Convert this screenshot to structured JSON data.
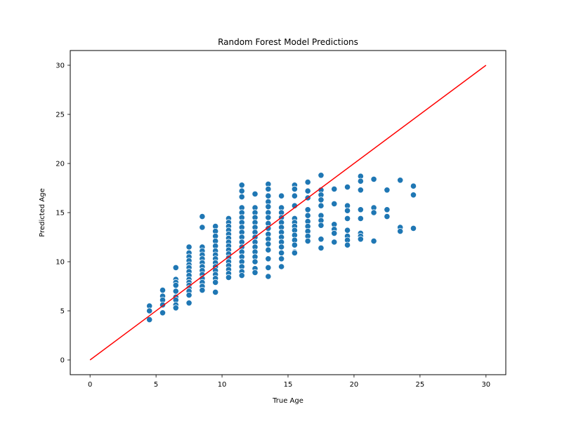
{
  "chart_data": {
    "type": "scatter",
    "title": "Random Forest Model Predictions",
    "xlabel": "True Age",
    "ylabel": "Predicted Age",
    "xlim": [
      -1.5,
      31.5
    ],
    "ylim": [
      -1.5,
      31.5
    ],
    "xticks": [
      0,
      5,
      10,
      15,
      20,
      25,
      30
    ],
    "yticks": [
      0,
      5,
      10,
      15,
      20,
      25,
      30
    ],
    "grid": false,
    "legend": "none",
    "colors": {
      "points": "#1f77b4",
      "reference_line": "#ff0000"
    },
    "reference_line": {
      "name": "",
      "x": [
        0,
        30
      ],
      "y": [
        0,
        30
      ]
    },
    "series": [
      {
        "name": "",
        "points": [
          [
            4.5,
            5.5
          ],
          [
            4.5,
            5.0
          ],
          [
            4.5,
            4.1
          ],
          [
            5.5,
            7.1
          ],
          [
            5.5,
            6.5
          ],
          [
            5.5,
            6.1
          ],
          [
            5.5,
            5.6
          ],
          [
            5.5,
            4.8
          ],
          [
            6.5,
            9.4
          ],
          [
            6.5,
            8.2
          ],
          [
            6.5,
            7.9
          ],
          [
            6.5,
            7.6
          ],
          [
            6.5,
            7.0
          ],
          [
            6.5,
            6.4
          ],
          [
            6.5,
            6.1
          ],
          [
            6.5,
            5.6
          ],
          [
            6.5,
            5.3
          ],
          [
            7.5,
            11.5
          ],
          [
            7.5,
            10.9
          ],
          [
            7.5,
            10.5
          ],
          [
            7.5,
            10.1
          ],
          [
            7.5,
            9.7
          ],
          [
            7.5,
            9.4
          ],
          [
            7.5,
            9.0
          ],
          [
            7.5,
            8.6
          ],
          [
            7.5,
            8.2
          ],
          [
            7.5,
            7.9
          ],
          [
            7.5,
            7.6
          ],
          [
            7.5,
            7.3
          ],
          [
            7.5,
            7.0
          ],
          [
            7.5,
            6.6
          ],
          [
            7.5,
            5.8
          ],
          [
            8.5,
            14.6
          ],
          [
            8.5,
            13.5
          ],
          [
            8.5,
            11.5
          ],
          [
            8.5,
            11.1
          ],
          [
            8.5,
            10.7
          ],
          [
            8.5,
            10.3
          ],
          [
            8.5,
            9.9
          ],
          [
            8.5,
            9.5
          ],
          [
            8.5,
            9.1
          ],
          [
            8.5,
            8.7
          ],
          [
            8.5,
            8.3
          ],
          [
            8.5,
            7.9
          ],
          [
            8.5,
            7.5
          ],
          [
            8.5,
            7.1
          ],
          [
            9.5,
            13.6
          ],
          [
            9.5,
            13.1
          ],
          [
            9.5,
            12.6
          ],
          [
            9.5,
            12.1
          ],
          [
            9.5,
            11.6
          ],
          [
            9.5,
            11.1
          ],
          [
            9.5,
            10.7
          ],
          [
            9.5,
            10.3
          ],
          [
            9.5,
            9.9
          ],
          [
            9.5,
            9.5
          ],
          [
            9.5,
            9.1
          ],
          [
            9.5,
            8.7
          ],
          [
            9.5,
            8.3
          ],
          [
            9.5,
            7.9
          ],
          [
            9.5,
            6.9
          ],
          [
            10.5,
            14.4
          ],
          [
            10.5,
            14.0
          ],
          [
            10.5,
            13.6
          ],
          [
            10.5,
            13.2
          ],
          [
            10.5,
            12.8
          ],
          [
            10.5,
            12.4
          ],
          [
            10.5,
            12.0
          ],
          [
            10.5,
            11.6
          ],
          [
            10.5,
            11.2
          ],
          [
            10.5,
            10.8
          ],
          [
            10.5,
            10.4
          ],
          [
            10.5,
            10.0
          ],
          [
            10.5,
            9.6
          ],
          [
            10.5,
            9.2
          ],
          [
            10.5,
            8.8
          ],
          [
            10.5,
            8.4
          ],
          [
            11.5,
            17.8
          ],
          [
            11.5,
            17.2
          ],
          [
            11.5,
            16.6
          ],
          [
            11.5,
            15.5
          ],
          [
            11.5,
            15.0
          ],
          [
            11.5,
            14.5
          ],
          [
            11.5,
            14.0
          ],
          [
            11.5,
            13.5
          ],
          [
            11.5,
            13.0
          ],
          [
            11.5,
            12.5
          ],
          [
            11.5,
            12.0
          ],
          [
            11.5,
            11.5
          ],
          [
            11.5,
            11.0
          ],
          [
            11.5,
            10.5
          ],
          [
            11.5,
            10.0
          ],
          [
            11.5,
            9.5
          ],
          [
            11.5,
            9.0
          ],
          [
            11.5,
            8.6
          ],
          [
            12.5,
            16.9
          ],
          [
            12.5,
            15.5
          ],
          [
            12.5,
            15.0
          ],
          [
            12.5,
            14.5
          ],
          [
            12.5,
            14.0
          ],
          [
            12.5,
            13.5
          ],
          [
            12.5,
            13.0
          ],
          [
            12.5,
            12.5
          ],
          [
            12.5,
            12.0
          ],
          [
            12.5,
            11.5
          ],
          [
            12.5,
            11.0
          ],
          [
            12.5,
            10.5
          ],
          [
            12.5,
            10.0
          ],
          [
            12.5,
            9.3
          ],
          [
            12.5,
            8.9
          ],
          [
            13.5,
            17.9
          ],
          [
            13.5,
            17.4
          ],
          [
            13.5,
            16.7
          ],
          [
            13.5,
            16.1
          ],
          [
            13.5,
            15.6
          ],
          [
            13.5,
            15.0
          ],
          [
            13.5,
            14.5
          ],
          [
            13.5,
            13.9
          ],
          [
            13.5,
            13.4
          ],
          [
            13.5,
            12.8
          ],
          [
            13.5,
            12.3
          ],
          [
            13.5,
            11.8
          ],
          [
            13.5,
            11.2
          ],
          [
            13.5,
            10.3
          ],
          [
            13.5,
            9.4
          ],
          [
            13.5,
            8.5
          ],
          [
            14.5,
            16.7
          ],
          [
            14.5,
            15.5
          ],
          [
            14.5,
            15.0
          ],
          [
            14.5,
            14.5
          ],
          [
            14.5,
            14.0
          ],
          [
            14.5,
            13.5
          ],
          [
            14.5,
            13.0
          ],
          [
            14.5,
            12.5
          ],
          [
            14.5,
            12.0
          ],
          [
            14.5,
            11.5
          ],
          [
            14.5,
            10.9
          ],
          [
            14.5,
            10.3
          ],
          [
            14.5,
            9.5
          ],
          [
            15.5,
            17.8
          ],
          [
            15.5,
            17.4
          ],
          [
            15.5,
            16.7
          ],
          [
            15.5,
            15.7
          ],
          [
            15.5,
            14.4
          ],
          [
            15.5,
            14.0
          ],
          [
            15.5,
            13.6
          ],
          [
            15.5,
            13.2
          ],
          [
            15.5,
            12.7
          ],
          [
            15.5,
            12.2
          ],
          [
            15.5,
            11.7
          ],
          [
            15.5,
            11.0
          ],
          [
            15.5,
            10.9
          ],
          [
            16.5,
            18.1
          ],
          [
            16.5,
            17.2
          ],
          [
            16.5,
            16.5
          ],
          [
            16.5,
            15.3
          ],
          [
            16.5,
            14.7
          ],
          [
            16.5,
            14.1
          ],
          [
            16.5,
            13.6
          ],
          [
            16.5,
            13.1
          ],
          [
            16.5,
            12.6
          ],
          [
            16.5,
            12.1
          ],
          [
            17.5,
            18.8
          ],
          [
            17.5,
            17.3
          ],
          [
            17.5,
            16.8
          ],
          [
            17.5,
            16.3
          ],
          [
            17.5,
            15.7
          ],
          [
            17.5,
            14.7
          ],
          [
            17.5,
            14.2
          ],
          [
            17.5,
            13.7
          ],
          [
            17.5,
            12.3
          ],
          [
            17.5,
            11.4
          ],
          [
            18.5,
            17.4
          ],
          [
            18.5,
            15.9
          ],
          [
            18.5,
            13.8
          ],
          [
            18.5,
            13.3
          ],
          [
            18.5,
            12.9
          ],
          [
            18.5,
            12.0
          ],
          [
            19.5,
            17.6
          ],
          [
            19.5,
            15.7
          ],
          [
            19.5,
            15.2
          ],
          [
            19.5,
            14.4
          ],
          [
            19.5,
            13.2
          ],
          [
            19.5,
            12.6
          ],
          [
            19.5,
            12.2
          ],
          [
            19.5,
            11.7
          ],
          [
            20.5,
            18.7
          ],
          [
            20.5,
            18.2
          ],
          [
            20.5,
            17.3
          ],
          [
            20.5,
            15.3
          ],
          [
            20.5,
            14.4
          ],
          [
            20.5,
            12.9
          ],
          [
            20.5,
            12.6
          ],
          [
            20.5,
            12.3
          ],
          [
            21.5,
            18.4
          ],
          [
            21.5,
            15.5
          ],
          [
            21.5,
            15.0
          ],
          [
            21.5,
            12.1
          ],
          [
            22.5,
            17.3
          ],
          [
            22.5,
            15.3
          ],
          [
            22.5,
            14.6
          ],
          [
            23.5,
            18.3
          ],
          [
            23.5,
            13.5
          ],
          [
            23.5,
            13.1
          ],
          [
            24.5,
            17.7
          ],
          [
            24.5,
            16.8
          ],
          [
            24.5,
            13.4
          ]
        ]
      }
    ]
  }
}
